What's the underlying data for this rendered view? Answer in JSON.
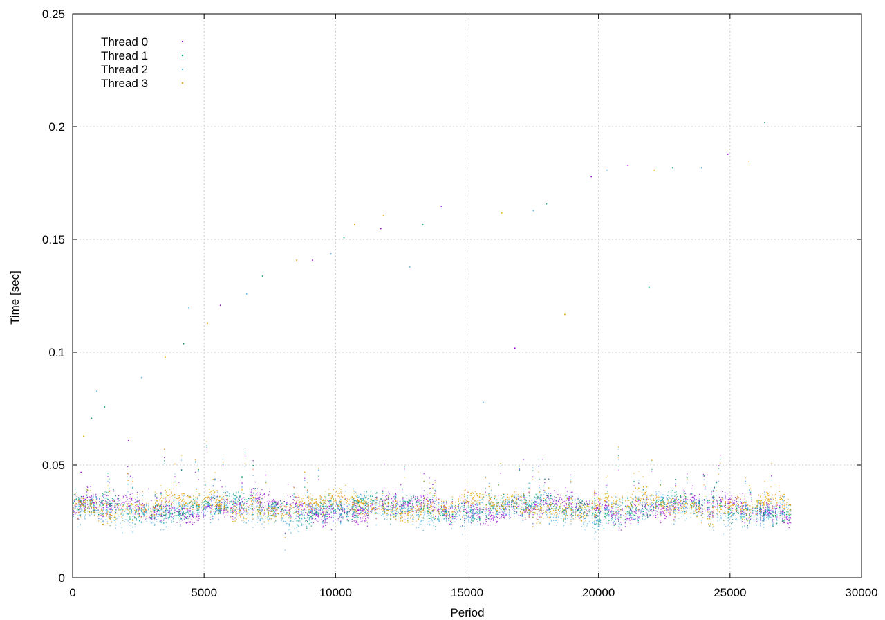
{
  "chart_data": {
    "type": "scatter",
    "title": "",
    "xlabel": "Period",
    "ylabel": "Time [sec]",
    "xlim": [
      0,
      30000
    ],
    "ylim": [
      0,
      0.25
    ],
    "x_ticks": [
      0,
      5000,
      10000,
      15000,
      20000,
      25000,
      30000
    ],
    "x_tick_labels": [
      "0",
      "5000",
      "10000",
      "15000",
      "20000",
      "25000",
      "30000"
    ],
    "y_ticks": [
      0,
      0.05,
      0.1,
      0.15,
      0.2,
      0.25
    ],
    "y_tick_labels": [
      "0",
      "0.05",
      "0.1",
      "0.15",
      "0.2",
      "0.25"
    ],
    "grid": true,
    "legend_position": "top-left",
    "series": [
      {
        "name": "Thread 0",
        "color": "#9400d3",
        "marker": "dot",
        "baseline": {
          "x_range": [
            0,
            27300
          ],
          "center": 0.031,
          "spread": 0.004,
          "estimated_count": 27300
        },
        "outliers": [
          [
            300,
            0.047
          ],
          [
            2100,
            0.061
          ],
          [
            5600,
            0.121
          ],
          [
            9100,
            0.141
          ],
          [
            11700,
            0.155
          ],
          [
            14000,
            0.165
          ],
          [
            16800,
            0.102
          ],
          [
            19700,
            0.178
          ],
          [
            21100,
            0.183
          ],
          [
            24900,
            0.188
          ]
        ]
      },
      {
        "name": "Thread 1",
        "color": "#009e73",
        "marker": "dot",
        "baseline": {
          "x_range": [
            0,
            27300
          ],
          "center": 0.031,
          "spread": 0.004,
          "estimated_count": 27300
        },
        "outliers": [
          [
            700,
            0.071
          ],
          [
            1200,
            0.076
          ],
          [
            4200,
            0.104
          ],
          [
            7200,
            0.134
          ],
          [
            10300,
            0.151
          ],
          [
            13300,
            0.157
          ],
          [
            18000,
            0.166
          ],
          [
            21900,
            0.129
          ],
          [
            22800,
            0.182
          ],
          [
            26300,
            0.202
          ]
        ]
      },
      {
        "name": "Thread 2",
        "color": "#56b4e9",
        "marker": "dot",
        "baseline": {
          "x_range": [
            0,
            27300
          ],
          "center": 0.03,
          "spread": 0.005,
          "estimated_count": 27300
        },
        "outliers": [
          [
            900,
            0.083
          ],
          [
            2600,
            0.089
          ],
          [
            4400,
            0.12
          ],
          [
            6600,
            0.126
          ],
          [
            9800,
            0.144
          ],
          [
            12800,
            0.138
          ],
          [
            15600,
            0.078
          ],
          [
            17500,
            0.163
          ],
          [
            20300,
            0.181
          ],
          [
            23900,
            0.182
          ]
        ]
      },
      {
        "name": "Thread 3",
        "color": "#e69f00",
        "marker": "dot",
        "baseline": {
          "x_range": [
            0,
            27300
          ],
          "center": 0.032,
          "spread": 0.004,
          "estimated_count": 27300
        },
        "outliers": [
          [
            400,
            0.063
          ],
          [
            3500,
            0.098
          ],
          [
            5100,
            0.113
          ],
          [
            8500,
            0.141
          ],
          [
            10700,
            0.157
          ],
          [
            11800,
            0.161
          ],
          [
            16300,
            0.162
          ],
          [
            18700,
            0.117
          ],
          [
            22100,
            0.181
          ],
          [
            25700,
            0.185
          ]
        ]
      }
    ]
  }
}
